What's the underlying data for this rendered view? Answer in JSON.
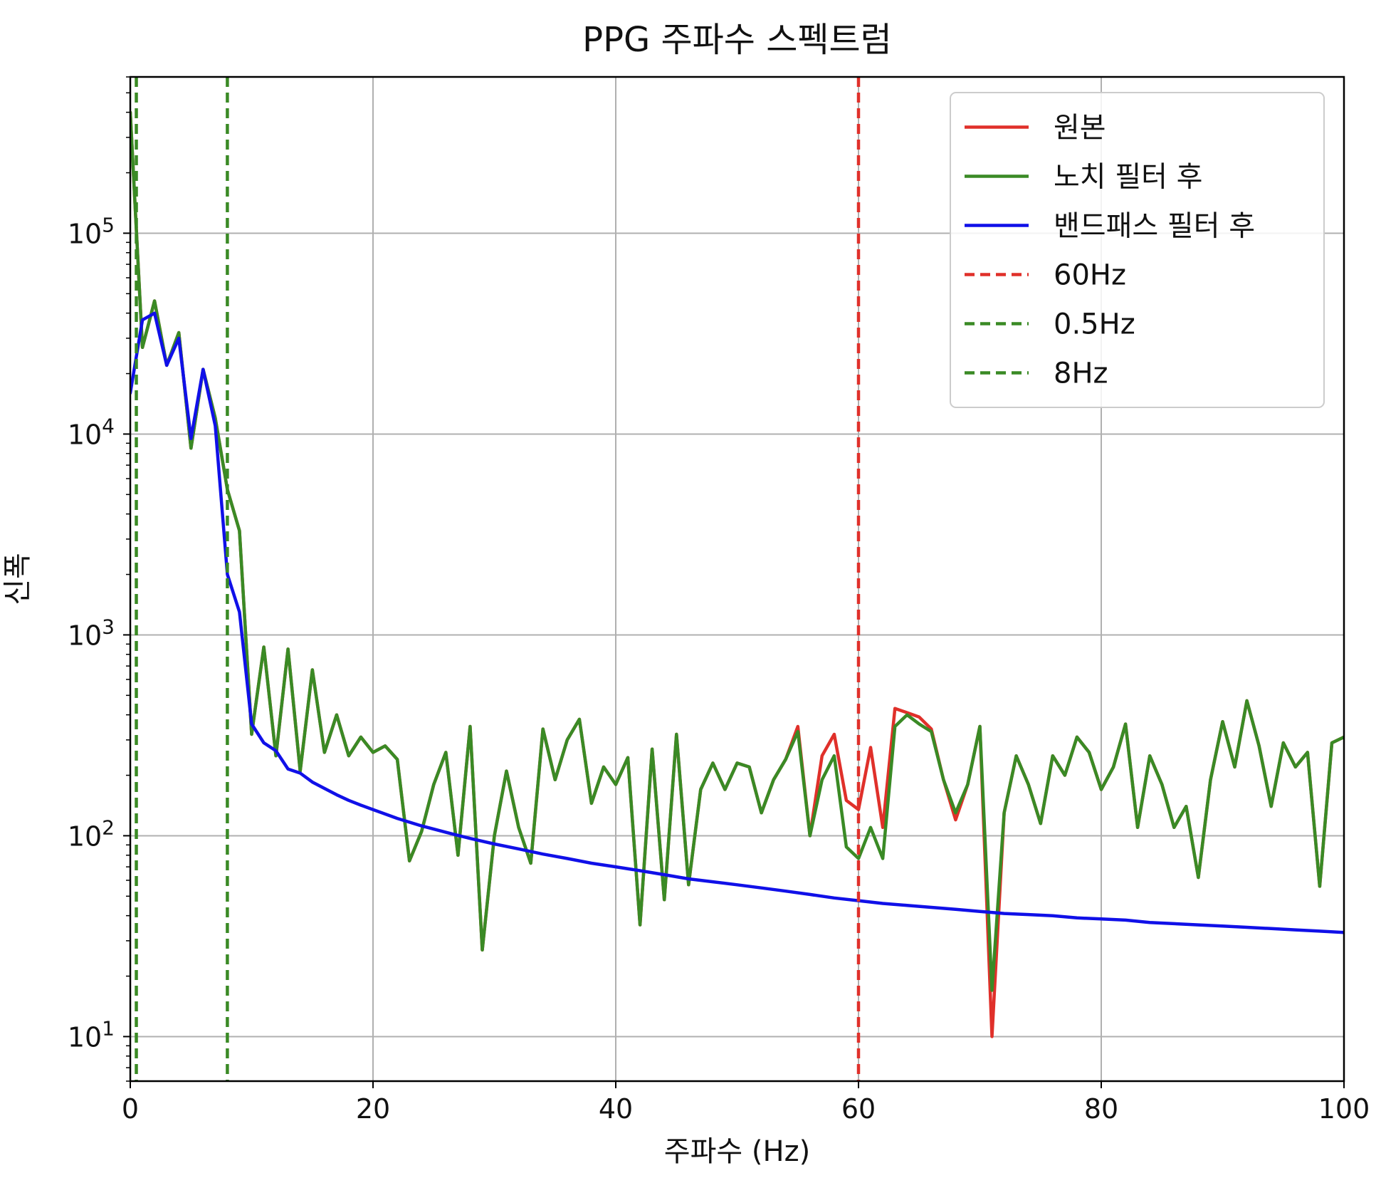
{
  "chart_data": {
    "type": "line",
    "title": "PPG 주파수 스펙트럼",
    "xlabel": "주파수 (Hz)",
    "ylabel": "신폭",
    "xlim": [
      0,
      100
    ],
    "ylim": [
      6,
      600000
    ],
    "yscale": "log",
    "grid": true,
    "legend_position": "top-right",
    "x_ticks": [
      0,
      20,
      40,
      60,
      80,
      100
    ],
    "x_tick_labels": [
      "0",
      "20",
      "40",
      "60",
      "80",
      "100"
    ],
    "y_tick_exponents": [
      1,
      2,
      3,
      4,
      5
    ],
    "y_tick_base": "10",
    "series": [
      {
        "name": "원본",
        "color": "#e0302a",
        "style": "solid",
        "x": [
          0,
          1,
          2,
          3,
          4,
          5,
          6,
          7,
          8,
          9,
          10,
          11,
          12,
          13,
          14,
          15,
          16,
          17,
          18,
          19,
          20,
          21,
          22,
          23,
          24,
          25,
          26,
          27,
          28,
          29,
          30,
          31,
          32,
          33,
          34,
          35,
          36,
          37,
          38,
          39,
          40,
          41,
          42,
          43,
          44,
          45,
          46,
          47,
          48,
          49,
          50,
          51,
          52,
          53,
          54,
          55,
          56,
          57,
          58,
          59,
          60,
          61,
          62,
          63,
          64,
          65,
          66,
          67,
          68,
          69,
          70,
          71,
          72,
          73,
          74,
          75,
          76,
          77,
          78,
          79,
          80,
          81,
          82,
          83,
          84,
          85,
          86,
          87,
          88,
          89,
          90,
          91,
          92,
          93,
          94,
          95,
          96,
          97,
          98,
          99,
          100
        ],
        "y": [
          400000,
          27000,
          46000,
          22000,
          32000,
          8500,
          21000,
          12000,
          5300,
          3300,
          320,
          870,
          250,
          850,
          210,
          670,
          260,
          400,
          250,
          310,
          260,
          280,
          240,
          75,
          105,
          180,
          260,
          80,
          350,
          27,
          100,
          210,
          110,
          73,
          340,
          190,
          300,
          380,
          145,
          220,
          180,
          245,
          36,
          270,
          48,
          320,
          57,
          170,
          230,
          170,
          230,
          220,
          130,
          190,
          240,
          350,
          100,
          250,
          320,
          150,
          135,
          275,
          110,
          430,
          410,
          390,
          340,
          190,
          120,
          180,
          350,
          10,
          130,
          250,
          180,
          115,
          250,
          200,
          310,
          260,
          170,
          220,
          360,
          110,
          250,
          180,
          110,
          140,
          62,
          190,
          370,
          220,
          470,
          280,
          140,
          290,
          220,
          260,
          56,
          290,
          310
        ]
      },
      {
        "name": "노치 필터 후",
        "color": "#3a8a25",
        "style": "solid",
        "x": [
          0,
          1,
          2,
          3,
          4,
          5,
          6,
          7,
          8,
          9,
          10,
          11,
          12,
          13,
          14,
          15,
          16,
          17,
          18,
          19,
          20,
          21,
          22,
          23,
          24,
          25,
          26,
          27,
          28,
          29,
          30,
          31,
          32,
          33,
          34,
          35,
          36,
          37,
          38,
          39,
          40,
          41,
          42,
          43,
          44,
          45,
          46,
          47,
          48,
          49,
          50,
          51,
          52,
          53,
          54,
          55,
          56,
          57,
          58,
          59,
          60,
          61,
          62,
          63,
          64,
          65,
          66,
          67,
          68,
          69,
          70,
          71,
          72,
          73,
          74,
          75,
          76,
          77,
          78,
          79,
          80,
          81,
          82,
          83,
          84,
          85,
          86,
          87,
          88,
          89,
          90,
          91,
          92,
          93,
          94,
          95,
          96,
          97,
          98,
          99,
          100
        ],
        "y": [
          400000,
          27000,
          46000,
          22000,
          32000,
          8500,
          21000,
          12000,
          5300,
          3300,
          320,
          870,
          250,
          850,
          210,
          670,
          260,
          400,
          250,
          310,
          260,
          280,
          240,
          75,
          105,
          180,
          260,
          80,
          350,
          27,
          100,
          210,
          110,
          73,
          340,
          190,
          300,
          380,
          145,
          220,
          180,
          245,
          36,
          270,
          48,
          320,
          57,
          170,
          230,
          170,
          230,
          220,
          130,
          190,
          240,
          330,
          100,
          190,
          250,
          88,
          77,
          110,
          77,
          350,
          400,
          360,
          330,
          190,
          130,
          180,
          350,
          17,
          130,
          250,
          180,
          115,
          250,
          200,
          310,
          260,
          170,
          220,
          360,
          110,
          250,
          180,
          110,
          140,
          62,
          190,
          370,
          220,
          470,
          280,
          140,
          290,
          220,
          260,
          56,
          290,
          310
        ]
      },
      {
        "name": "밴드패스 필터 후",
        "color": "#1010e8",
        "style": "solid",
        "x": [
          0,
          1,
          2,
          3,
          4,
          5,
          6,
          7,
          8,
          9,
          10,
          11,
          12,
          13,
          14,
          15,
          16,
          17,
          18,
          19,
          20,
          22,
          24,
          26,
          28,
          30,
          32,
          34,
          36,
          38,
          40,
          42,
          44,
          46,
          48,
          50,
          52,
          54,
          56,
          58,
          60,
          62,
          64,
          66,
          68,
          70,
          72,
          74,
          76,
          78,
          80,
          82,
          84,
          86,
          88,
          90,
          92,
          94,
          96,
          98,
          100
        ],
        "y": [
          16000,
          37000,
          40000,
          22000,
          30000,
          9500,
          21000,
          11000,
          2000,
          1300,
          360,
          290,
          265,
          215,
          205,
          185,
          172,
          160,
          150,
          142,
          135,
          122,
          112,
          104,
          97,
          91,
          86,
          81,
          77,
          73,
          70,
          67,
          64,
          61,
          59,
          57,
          55,
          53,
          51,
          49,
          47.5,
          46,
          45,
          44,
          43,
          42,
          41,
          40.5,
          40,
          39,
          38.5,
          38,
          37,
          36.5,
          36,
          35.5,
          35,
          34.5,
          34,
          33.5,
          33
        ]
      }
    ],
    "vlines": [
      {
        "name": "60Hz",
        "x": 60,
        "color": "#e0302a",
        "style": "dashed"
      },
      {
        "name": "0.5Hz",
        "x": 0.5,
        "color": "#3a8a25",
        "style": "dashed"
      },
      {
        "name": "8Hz",
        "x": 8,
        "color": "#3a8a25",
        "style": "dashed"
      }
    ]
  }
}
